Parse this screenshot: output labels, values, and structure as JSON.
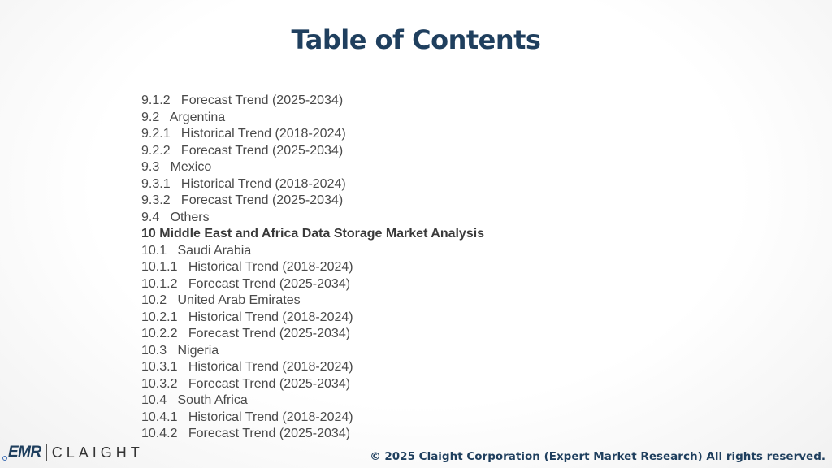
{
  "title": "Table of Contents",
  "toc": [
    {
      "text": "9.1.2   Forecast Trend (2025-2034)",
      "bold": false
    },
    {
      "text": "9.2   Argentina",
      "bold": false
    },
    {
      "text": "9.2.1   Historical Trend (2018-2024)",
      "bold": false
    },
    {
      "text": "9.2.2   Forecast Trend (2025-2034)",
      "bold": false
    },
    {
      "text": "9.3   Mexico",
      "bold": false
    },
    {
      "text": "9.3.1   Historical Trend (2018-2024)",
      "bold": false
    },
    {
      "text": "9.3.2   Forecast Trend (2025-2034)",
      "bold": false
    },
    {
      "text": "9.4   Others",
      "bold": false
    },
    {
      "text": "10 Middle East and Africa Data Storage Market Analysis",
      "bold": true
    },
    {
      "text": "10.1   Saudi Arabia",
      "bold": false
    },
    {
      "text": "10.1.1   Historical Trend (2018-2024)",
      "bold": false
    },
    {
      "text": "10.1.2   Forecast Trend (2025-2034)",
      "bold": false
    },
    {
      "text": "10.2   United Arab Emirates",
      "bold": false
    },
    {
      "text": "10.2.1   Historical Trend (2018-2024)",
      "bold": false
    },
    {
      "text": "10.2.2   Forecast Trend (2025-2034)",
      "bold": false
    },
    {
      "text": "10.3   Nigeria",
      "bold": false
    },
    {
      "text": "10.3.1   Historical Trend (2018-2024)",
      "bold": false
    },
    {
      "text": "10.3.2   Forecast Trend (2025-2034)",
      "bold": false
    },
    {
      "text": "10.4   South Africa",
      "bold": false
    },
    {
      "text": "10.4.1   Historical Trend (2018-2024)",
      "bold": false
    },
    {
      "text": "10.4.2   Forecast Trend (2025-2034)",
      "bold": false
    }
  ],
  "logo": {
    "brand_left": "EMR",
    "brand_right": "CLAIGHT"
  },
  "footer": {
    "copyright": "© 2025 Claight Corporation (Expert Market Research) All rights reserved."
  },
  "colors": {
    "title": "#1f3f5e",
    "body_text": "#4a4a4a",
    "footer": "#1f3f5e"
  }
}
